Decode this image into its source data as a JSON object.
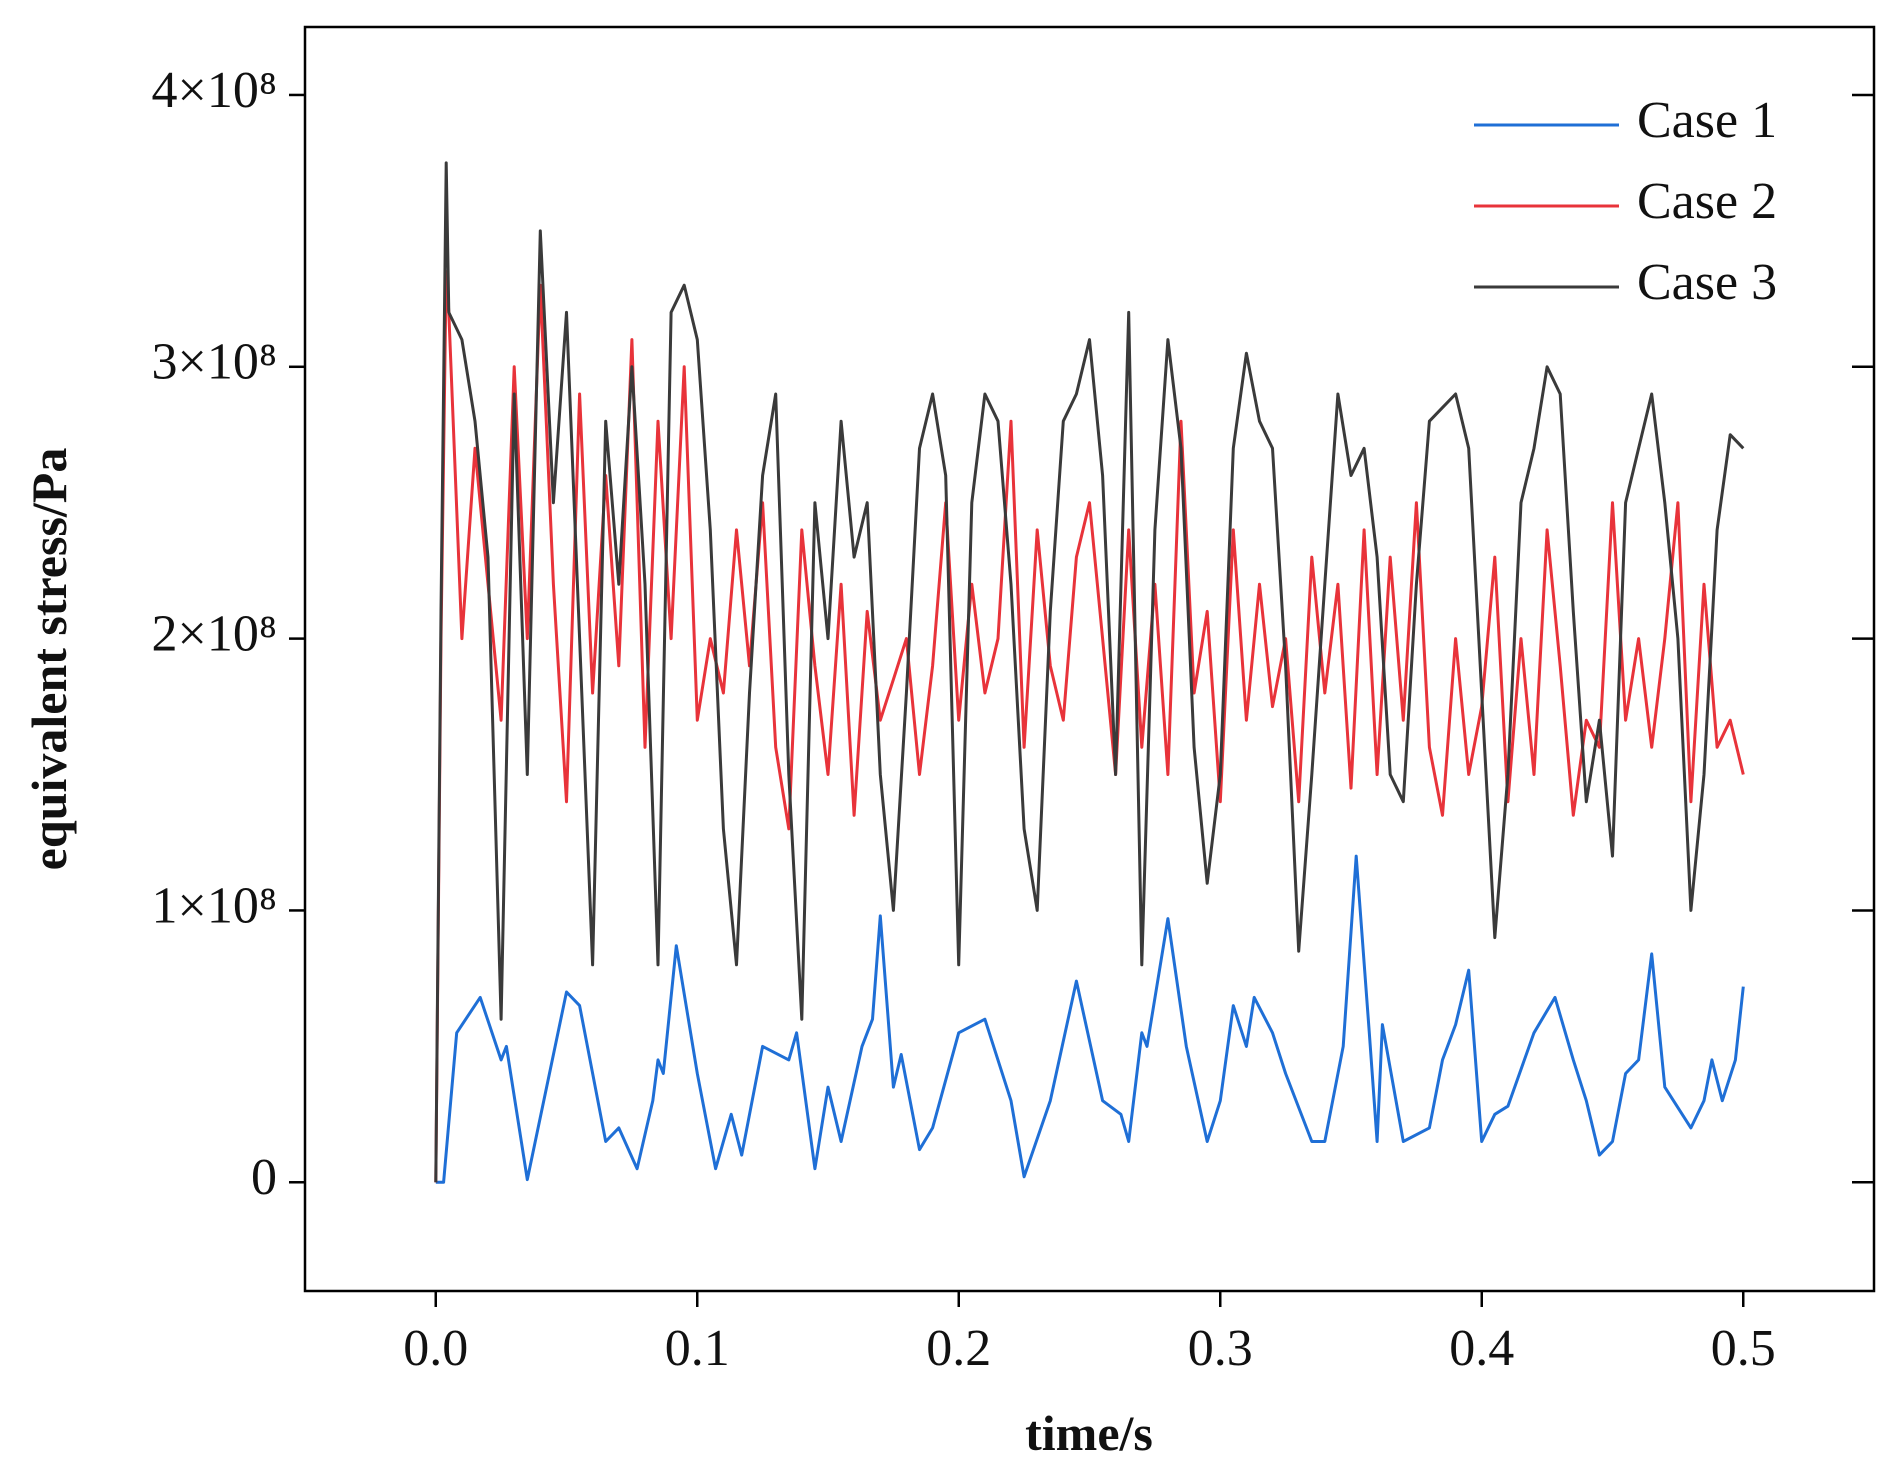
{
  "chart_data": {
    "type": "line",
    "xlabel": "time/s",
    "ylabel": "equivalent stress/Pa",
    "xlim": [
      -0.05,
      0.55
    ],
    "ylim": [
      -40000000,
      425000000
    ],
    "xticks": [
      {
        "value": 0,
        "label": "0.0"
      },
      0.1,
      0.2,
      0.3,
      0.4,
      0.5
    ],
    "yticks": [
      0,
      {
        "value": 100000000,
        "label": "1×10⁸"
      },
      {
        "value": 200000000,
        "label": "2×10⁸"
      },
      {
        "value": 300000000,
        "label": "3×10⁸"
      },
      {
        "value": 400000000,
        "label": "4×10⁸"
      }
    ],
    "legend": "upper right",
    "grid": false,
    "series": [
      {
        "name": "Case 1",
        "color": "#1f6fd6",
        "x": [
          0,
          0.003,
          0.008,
          0.017,
          0.025,
          0.027,
          0.035,
          0.05,
          0.055,
          0.065,
          0.07,
          0.077,
          0.083,
          0.085,
          0.087,
          0.092,
          0.1,
          0.107,
          0.113,
          0.117,
          0.125,
          0.135,
          0.138,
          0.145,
          0.15,
          0.155,
          0.163,
          0.167,
          0.17,
          0.175,
          0.178,
          0.185,
          0.19,
          0.2,
          0.21,
          0.22,
          0.225,
          0.235,
          0.245,
          0.255,
          0.262,
          0.265,
          0.27,
          0.272,
          0.28,
          0.287,
          0.295,
          0.3,
          0.305,
          0.31,
          0.313,
          0.32,
          0.325,
          0.335,
          0.34,
          0.347,
          0.352,
          0.357,
          0.36,
          0.362,
          0.37,
          0.38,
          0.385,
          0.39,
          0.395,
          0.4,
          0.405,
          0.41,
          0.42,
          0.428,
          0.435,
          0.44,
          0.445,
          0.45,
          0.455,
          0.46,
          0.465,
          0.47,
          0.48,
          0.485,
          0.488,
          0.492,
          0.497,
          0.5
        ],
        "values": [
          0,
          0,
          55000000.0,
          68000000.0,
          45000000.0,
          50000000.0,
          1000000.0,
          70000000.0,
          65000000.0,
          15000000.0,
          20000000.0,
          5000000.0,
          30000000.0,
          45000000.0,
          40000000.0,
          87000000.0,
          40000000.0,
          5000000.0,
          25000000.0,
          10000000.0,
          50000000.0,
          45000000.0,
          55000000.0,
          5000000.0,
          35000000.0,
          15000000.0,
          50000000.0,
          60000000.0,
          98000000.0,
          35000000.0,
          47000000.0,
          12000000.0,
          20000000.0,
          55000000.0,
          60000000.0,
          30000000.0,
          2000000.0,
          30000000.0,
          74000000.0,
          30000000.0,
          25000000.0,
          15000000.0,
          55000000.0,
          50000000.0,
          97000000.0,
          50000000.0,
          15000000.0,
          30000000.0,
          65000000.0,
          50000000.0,
          68000000.0,
          55000000.0,
          40000000.0,
          15000000.0,
          15000000.0,
          50000000.0,
          120000000.0,
          55000000.0,
          15000000.0,
          58000000.0,
          15000000.0,
          20000000.0,
          45000000.0,
          58000000.0,
          78000000.0,
          15000000.0,
          25000000.0,
          28000000.0,
          55000000.0,
          68000000.0,
          45000000.0,
          30000000.0,
          10000000.0,
          15000000.0,
          40000000.0,
          45000000.0,
          84000000.0,
          35000000.0,
          20000000.0,
          30000000.0,
          45000000.0,
          30000000.0,
          45000000.0,
          72000000.0
        ]
      },
      {
        "name": "Case 2",
        "color": "#e8333a",
        "x": [
          0,
          0.002,
          0.004,
          0.005,
          0.01,
          0.015,
          0.02,
          0.025,
          0.03,
          0.035,
          0.04,
          0.045,
          0.05,
          0.055,
          0.06,
          0.065,
          0.07,
          0.075,
          0.08,
          0.085,
          0.09,
          0.095,
          0.1,
          0.105,
          0.11,
          0.115,
          0.12,
          0.125,
          0.13,
          0.135,
          0.14,
          0.145,
          0.15,
          0.155,
          0.16,
          0.165,
          0.17,
          0.175,
          0.18,
          0.185,
          0.19,
          0.195,
          0.2,
          0.205,
          0.21,
          0.215,
          0.22,
          0.225,
          0.23,
          0.235,
          0.24,
          0.245,
          0.25,
          0.255,
          0.26,
          0.265,
          0.27,
          0.275,
          0.28,
          0.285,
          0.29,
          0.295,
          0.3,
          0.305,
          0.31,
          0.315,
          0.32,
          0.325,
          0.33,
          0.335,
          0.34,
          0.345,
          0.35,
          0.355,
          0.36,
          0.365,
          0.37,
          0.375,
          0.38,
          0.385,
          0.39,
          0.395,
          0.4,
          0.405,
          0.41,
          0.415,
          0.42,
          0.425,
          0.43,
          0.435,
          0.44,
          0.445,
          0.45,
          0.455,
          0.46,
          0.465,
          0.47,
          0.475,
          0.48,
          0.485,
          0.49,
          0.495,
          0.5
        ],
        "values": [
          0,
          200000000.0,
          335000000.0,
          320000000.0,
          200000000.0,
          270000000.0,
          220000000.0,
          170000000.0,
          300000000.0,
          200000000.0,
          330000000.0,
          220000000.0,
          140000000.0,
          290000000.0,
          180000000.0,
          260000000.0,
          190000000.0,
          310000000.0,
          160000000.0,
          280000000.0,
          200000000.0,
          300000000.0,
          170000000.0,
          200000000.0,
          180000000.0,
          240000000.0,
          190000000.0,
          250000000.0,
          160000000.0,
          130000000.0,
          240000000.0,
          190000000.0,
          150000000.0,
          220000000.0,
          135000000.0,
          210000000.0,
          170000000.0,
          185000000.0,
          200000000.0,
          150000000.0,
          190000000.0,
          250000000.0,
          170000000.0,
          220000000.0,
          180000000.0,
          200000000.0,
          280000000.0,
          160000000.0,
          240000000.0,
          190000000.0,
          170000000.0,
          230000000.0,
          250000000.0,
          200000000.0,
          150000000.0,
          240000000.0,
          160000000.0,
          220000000.0,
          150000000.0,
          280000000.0,
          180000000.0,
          210000000.0,
          140000000.0,
          240000000.0,
          170000000.0,
          220000000.0,
          175000000.0,
          200000000.0,
          140000000.0,
          230000000.0,
          180000000.0,
          220000000.0,
          145000000.0,
          240000000.0,
          150000000.0,
          230000000.0,
          170000000.0,
          250000000.0,
          160000000.0,
          135000000.0,
          200000000.0,
          150000000.0,
          175000000.0,
          230000000.0,
          140000000.0,
          200000000.0,
          150000000.0,
          240000000.0,
          190000000.0,
          135000000.0,
          170000000.0,
          160000000.0,
          250000000.0,
          170000000.0,
          200000000.0,
          160000000.0,
          200000000.0,
          250000000.0,
          140000000.0,
          220000000.0,
          160000000.0,
          170000000.0,
          150000000.0
        ]
      },
      {
        "name": "Case 3",
        "color": "#3a3a3a",
        "x": [
          0,
          0.002,
          0.004,
          0.005,
          0.01,
          0.015,
          0.02,
          0.025,
          0.03,
          0.035,
          0.04,
          0.045,
          0.05,
          0.055,
          0.06,
          0.065,
          0.07,
          0.075,
          0.08,
          0.085,
          0.09,
          0.095,
          0.1,
          0.105,
          0.11,
          0.115,
          0.12,
          0.125,
          0.13,
          0.135,
          0.14,
          0.145,
          0.15,
          0.155,
          0.16,
          0.165,
          0.17,
          0.175,
          0.18,
          0.185,
          0.19,
          0.195,
          0.2,
          0.205,
          0.21,
          0.215,
          0.22,
          0.225,
          0.23,
          0.235,
          0.24,
          0.245,
          0.25,
          0.255,
          0.26,
          0.265,
          0.27,
          0.275,
          0.28,
          0.285,
          0.29,
          0.295,
          0.3,
          0.305,
          0.31,
          0.315,
          0.32,
          0.325,
          0.33,
          0.335,
          0.34,
          0.345,
          0.35,
          0.355,
          0.36,
          0.365,
          0.37,
          0.375,
          0.38,
          0.385,
          0.39,
          0.395,
          0.4,
          0.405,
          0.41,
          0.415,
          0.42,
          0.425,
          0.43,
          0.435,
          0.44,
          0.445,
          0.45,
          0.455,
          0.46,
          0.465,
          0.47,
          0.475,
          0.48,
          0.485,
          0.49,
          0.495,
          0.5
        ],
        "values": [
          0,
          210000000.0,
          375000000.0,
          320000000.0,
          310000000.0,
          280000000.0,
          230000000.0,
          60000000.0,
          290000000.0,
          150000000.0,
          350000000.0,
          250000000.0,
          320000000.0,
          200000000.0,
          80000000.0,
          280000000.0,
          220000000.0,
          300000000.0,
          220000000.0,
          80000000.0,
          320000000.0,
          330000000.0,
          310000000.0,
          240000000.0,
          130000000.0,
          80000000.0,
          180000000.0,
          260000000.0,
          290000000.0,
          150000000.0,
          60000000.0,
          250000000.0,
          200000000.0,
          280000000.0,
          230000000.0,
          250000000.0,
          150000000.0,
          100000000.0,
          180000000.0,
          270000000.0,
          290000000.0,
          260000000.0,
          80000000.0,
          250000000.0,
          290000000.0,
          280000000.0,
          220000000.0,
          130000000.0,
          100000000.0,
          210000000.0,
          280000000.0,
          290000000.0,
          310000000.0,
          260000000.0,
          150000000.0,
          320000000.0,
          80000000.0,
          240000000.0,
          310000000.0,
          270000000.0,
          160000000.0,
          110000000.0,
          150000000.0,
          270000000.0,
          305000000.0,
          280000000.0,
          270000000.0,
          190000000.0,
          85000000.0,
          150000000.0,
          220000000.0,
          290000000.0,
          260000000.0,
          270000000.0,
          230000000.0,
          150000000.0,
          140000000.0,
          220000000.0,
          280000000.0,
          285000000.0,
          290000000.0,
          270000000.0,
          180000000.0,
          90000000.0,
          150000000.0,
          250000000.0,
          270000000.0,
          300000000.0,
          290000000.0,
          210000000.0,
          140000000.0,
          170000000.0,
          120000000.0,
          250000000.0,
          270000000.0,
          290000000.0,
          250000000.0,
          200000000.0,
          100000000.0,
          150000000.0,
          240000000.0,
          275000000.0,
          270000000.0
        ]
      }
    ]
  }
}
